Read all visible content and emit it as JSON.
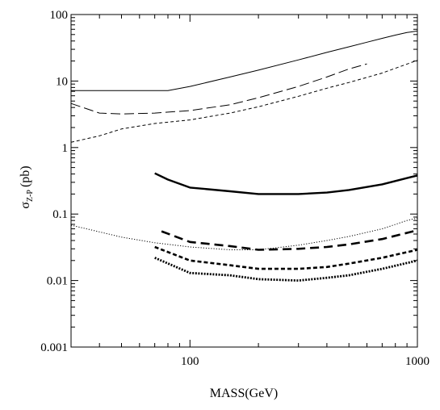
{
  "chart_data": {
    "type": "line",
    "title": "",
    "xlabel": "MASS(GeV)",
    "ylabel": {
      "main": "σ",
      "sub": "Z-P",
      "unit": "(pb)"
    },
    "xscale": "log",
    "yscale": "log",
    "xlim": [
      30,
      1000
    ],
    "ylim": [
      0.001,
      100
    ],
    "x_ticks": [
      {
        "value": 100,
        "label": "100"
      },
      {
        "value": 1000,
        "label": "1000"
      }
    ],
    "y_ticks": [
      {
        "value": 100,
        "label": "100"
      },
      {
        "value": 10,
        "label": "10"
      },
      {
        "value": 1,
        "label": "1"
      },
      {
        "value": 0.1,
        "label": "0.1"
      },
      {
        "value": 0.01,
        "label": "0.01"
      },
      {
        "value": 0.001,
        "label": "0.001"
      }
    ],
    "grid": false,
    "legend": "none",
    "series": [
      {
        "style": "solid-thin",
        "points": [
          [
            30,
            7.2
          ],
          [
            50,
            7.2
          ],
          [
            70,
            7.2
          ],
          [
            80,
            7.2
          ],
          [
            100,
            8.3
          ],
          [
            150,
            11.5
          ],
          [
            200,
            14.6
          ],
          [
            300,
            20.8
          ],
          [
            400,
            27
          ],
          [
            500,
            32.7
          ],
          [
            600,
            38.3
          ],
          [
            700,
            43.9
          ],
          [
            800,
            49.1
          ],
          [
            900,
            53.6
          ],
          [
            1000,
            56.5
          ]
        ]
      },
      {
        "style": "dashed-long-thin",
        "points": [
          [
            30,
            4.6
          ],
          [
            40,
            3.3
          ],
          [
            50,
            3.2
          ],
          [
            70,
            3.3
          ],
          [
            100,
            3.6
          ],
          [
            150,
            4.4
          ],
          [
            200,
            5.6
          ],
          [
            300,
            8.3
          ],
          [
            400,
            11.5
          ],
          [
            500,
            15.2
          ],
          [
            600,
            18.1
          ]
        ]
      },
      {
        "style": "dashed-short-thin",
        "points": [
          [
            30,
            1.2
          ],
          [
            40,
            1.5
          ],
          [
            50,
            1.9
          ],
          [
            70,
            2.3
          ],
          [
            100,
            2.6
          ],
          [
            150,
            3.3
          ],
          [
            200,
            4.1
          ],
          [
            300,
            5.9
          ],
          [
            400,
            7.8
          ],
          [
            500,
            9.5
          ],
          [
            700,
            13.2
          ],
          [
            1000,
            20.5
          ]
        ]
      },
      {
        "style": "dotted-thin",
        "points": [
          [
            30,
            0.068
          ],
          [
            40,
            0.054
          ],
          [
            50,
            0.045
          ],
          [
            70,
            0.037
          ],
          [
            100,
            0.032
          ],
          [
            150,
            0.029
          ],
          [
            200,
            0.029
          ],
          [
            300,
            0.034
          ],
          [
            400,
            0.04
          ],
          [
            500,
            0.046
          ],
          [
            700,
            0.06
          ],
          [
            900,
            0.08
          ],
          [
            1000,
            0.087
          ]
        ]
      },
      {
        "style": "solid-thick",
        "points": [
          [
            70,
            0.41
          ],
          [
            80,
            0.33
          ],
          [
            100,
            0.25
          ],
          [
            150,
            0.22
          ],
          [
            200,
            0.2
          ],
          [
            300,
            0.2
          ],
          [
            400,
            0.21
          ],
          [
            500,
            0.23
          ],
          [
            700,
            0.28
          ],
          [
            1000,
            0.38
          ]
        ]
      },
      {
        "style": "dashed-long-thick",
        "points": [
          [
            75,
            0.055
          ],
          [
            100,
            0.038
          ],
          [
            150,
            0.033
          ],
          [
            200,
            0.029
          ],
          [
            300,
            0.03
          ],
          [
            400,
            0.032
          ],
          [
            500,
            0.035
          ],
          [
            700,
            0.042
          ],
          [
            1000,
            0.057
          ]
        ]
      },
      {
        "style": "dashed-short-thick",
        "points": [
          [
            70,
            0.032
          ],
          [
            100,
            0.02
          ],
          [
            150,
            0.017
          ],
          [
            200,
            0.015
          ],
          [
            300,
            0.015
          ],
          [
            400,
            0.016
          ],
          [
            500,
            0.018
          ],
          [
            700,
            0.022
          ],
          [
            1000,
            0.029
          ]
        ]
      },
      {
        "style": "dotted-thick",
        "points": [
          [
            70,
            0.022
          ],
          [
            100,
            0.013
          ],
          [
            150,
            0.012
          ],
          [
            200,
            0.0105
          ],
          [
            300,
            0.01
          ],
          [
            400,
            0.011
          ],
          [
            500,
            0.012
          ],
          [
            700,
            0.015
          ],
          [
            1000,
            0.02
          ]
        ]
      }
    ]
  }
}
